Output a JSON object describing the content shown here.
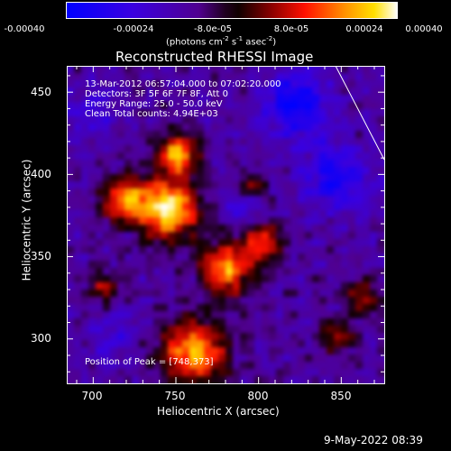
{
  "colorbar": {
    "tick_labels": [
      "-0.00040",
      "-0.00024",
      "-8.0e-05",
      "8.0e-05",
      "0.00024",
      "0.00040"
    ],
    "unit_prefix": "(photons cm",
    "unit_exp1": "-2",
    "unit_mid": " s",
    "unit_exp2": "-1",
    "unit_end": " asec",
    "unit_exp3": "-2",
    "unit_close": ")",
    "range": [
      -0.0004,
      0.0004
    ]
  },
  "chart_data": {
    "type": "heatmap",
    "title": "Reconstructed RHESSI Image",
    "xlabel": "Heliocentric X (arcsec)",
    "ylabel": "Heliocentric Y (arcsec)",
    "xlim": [
      684,
      876
    ],
    "ylim": [
      273,
      466
    ],
    "x_ticks": [
      "700",
      "750",
      "800",
      "850"
    ],
    "y_ticks": [
      "300",
      "350",
      "400",
      "450"
    ],
    "peak": [
      748,
      373
    ],
    "annotations": {
      "time": "13-Mar-2012 06:57:04.000 to 07:02:20.000",
      "detectors": "Detectors: 3F 5F 6F 7F 8F, Att 0",
      "energy": "Energy Range: 25.0 - 50.0 keV",
      "clean": "Clean     Total counts: 4.94E+03",
      "peak_text": "Position of Peak = [748,373]"
    }
  },
  "footer": {
    "date": "9-May-2022 08:39"
  },
  "colors": {
    "background": "#000000",
    "text": "#ffffff"
  }
}
